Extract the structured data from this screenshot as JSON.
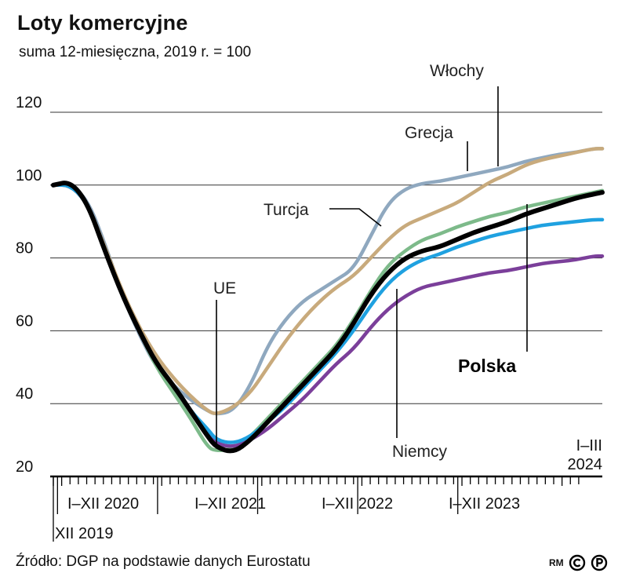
{
  "title": "Loty komercyjne",
  "subtitle": "suma 12-miesięczna, 2019 r. = 100",
  "source": "Źródło: DGP na podstawie danych Eurostatu",
  "credit": "RM",
  "chart_data": {
    "type": "line",
    "ylim": [
      20,
      120
    ],
    "yticks": [
      20,
      40,
      60,
      80,
      100,
      120
    ],
    "x_start": "2019-12",
    "x_end": "2024-03",
    "grid": true,
    "year_labels": [
      "I–XII 2020",
      "I–XII 2021",
      "I–XII 2022",
      "I–XII 2023"
    ],
    "start_label": "XII 2019",
    "end_label_line1": "I–III",
    "end_label_line2": "2024",
    "series": [
      {
        "name": "Polska",
        "color": "#000000",
        "values": [
          [
            0,
            100
          ],
          [
            2,
            101
          ],
          [
            4,
            95
          ],
          [
            6,
            82
          ],
          [
            8,
            70
          ],
          [
            10,
            60
          ],
          [
            12,
            51
          ],
          [
            14,
            45
          ],
          [
            16,
            38
          ],
          [
            18,
            31
          ],
          [
            19,
            28
          ],
          [
            21,
            26.5
          ],
          [
            23,
            30
          ],
          [
            25,
            35
          ],
          [
            27,
            40
          ],
          [
            29,
            45
          ],
          [
            31,
            50
          ],
          [
            33,
            55
          ],
          [
            35,
            62
          ],
          [
            37,
            70
          ],
          [
            39,
            76
          ],
          [
            41,
            80
          ],
          [
            43,
            82
          ],
          [
            45,
            83
          ],
          [
            47,
            85
          ],
          [
            49,
            87
          ],
          [
            51,
            88.5
          ],
          [
            53,
            90
          ],
          [
            55,
            92
          ],
          [
            57,
            93.5
          ],
          [
            59,
            95
          ],
          [
            61,
            96.5
          ],
          [
            63,
            97.5
          ],
          [
            64,
            98
          ]
        ]
      },
      {
        "name": "UE",
        "color": "#1fa1e0",
        "values": [
          [
            0,
            100
          ],
          [
            2,
            100
          ],
          [
            4,
            95
          ],
          [
            6,
            82
          ],
          [
            8,
            70
          ],
          [
            10,
            60
          ],
          [
            12,
            51
          ],
          [
            14,
            45
          ],
          [
            16,
            38
          ],
          [
            18,
            33
          ],
          [
            19,
            30
          ],
          [
            21,
            29
          ],
          [
            23,
            31
          ],
          [
            25,
            35
          ],
          [
            27,
            39
          ],
          [
            29,
            44
          ],
          [
            31,
            49
          ],
          [
            33,
            54
          ],
          [
            35,
            60
          ],
          [
            37,
            67
          ],
          [
            39,
            73
          ],
          [
            41,
            77
          ],
          [
            43,
            79.5
          ],
          [
            45,
            81
          ],
          [
            47,
            83
          ],
          [
            49,
            84.5
          ],
          [
            51,
            86
          ],
          [
            53,
            87
          ],
          [
            55,
            88
          ],
          [
            57,
            89
          ],
          [
            59,
            89.5
          ],
          [
            61,
            90
          ],
          [
            63,
            90.5
          ],
          [
            64,
            90.5
          ]
        ]
      },
      {
        "name": "",
        "color": "#7b3f9a",
        "values": [
          [
            0,
            100
          ],
          [
            2,
            100
          ],
          [
            4,
            95
          ],
          [
            6,
            82
          ],
          [
            8,
            70
          ],
          [
            10,
            60
          ],
          [
            12,
            51
          ],
          [
            14,
            45
          ],
          [
            16,
            38
          ],
          [
            18,
            32
          ],
          [
            19,
            29
          ],
          [
            21,
            28
          ],
          [
            23,
            30
          ],
          [
            25,
            33
          ],
          [
            27,
            37
          ],
          [
            29,
            41
          ],
          [
            31,
            46
          ],
          [
            33,
            51
          ],
          [
            35,
            55
          ],
          [
            37,
            61
          ],
          [
            39,
            66
          ],
          [
            41,
            69.5
          ],
          [
            43,
            72
          ],
          [
            45,
            73
          ],
          [
            47,
            74
          ],
          [
            49,
            75
          ],
          [
            51,
            76
          ],
          [
            53,
            76.5
          ],
          [
            55,
            77.5
          ],
          [
            57,
            78.5
          ],
          [
            59,
            79
          ],
          [
            61,
            79.5
          ],
          [
            63,
            80.5
          ],
          [
            64,
            80.5
          ]
        ]
      },
      {
        "name": "Niemcy",
        "color": "#7dba8a",
        "values": [
          [
            0,
            100
          ],
          [
            2,
            100
          ],
          [
            4,
            95
          ],
          [
            6,
            82
          ],
          [
            8,
            70
          ],
          [
            10,
            60
          ],
          [
            12,
            50
          ],
          [
            14,
            43
          ],
          [
            16,
            36
          ],
          [
            18,
            28
          ],
          [
            19,
            27
          ],
          [
            21,
            27.5
          ],
          [
            23,
            31
          ],
          [
            25,
            36
          ],
          [
            27,
            41
          ],
          [
            29,
            46
          ],
          [
            31,
            51
          ],
          [
            33,
            56
          ],
          [
            35,
            63
          ],
          [
            37,
            71
          ],
          [
            39,
            78
          ],
          [
            41,
            82
          ],
          [
            43,
            85
          ],
          [
            45,
            86.5
          ],
          [
            47,
            88.5
          ],
          [
            49,
            90
          ],
          [
            51,
            91.5
          ],
          [
            53,
            92.5
          ],
          [
            55,
            94
          ],
          [
            57,
            95
          ],
          [
            59,
            96
          ],
          [
            61,
            97
          ],
          [
            63,
            98
          ],
          [
            64,
            98.5
          ]
        ]
      },
      {
        "name": "Turcja",
        "color": "#c8aa7c",
        "values": [
          [
            0,
            100
          ],
          [
            2,
            100
          ],
          [
            4,
            95
          ],
          [
            6,
            83
          ],
          [
            8,
            71
          ],
          [
            10,
            61
          ],
          [
            12,
            53
          ],
          [
            14,
            47
          ],
          [
            16,
            42
          ],
          [
            18,
            38
          ],
          [
            19,
            37
          ],
          [
            21,
            39
          ],
          [
            23,
            43
          ],
          [
            25,
            50
          ],
          [
            27,
            57
          ],
          [
            29,
            63
          ],
          [
            31,
            68
          ],
          [
            33,
            72
          ],
          [
            35,
            75
          ],
          [
            37,
            80
          ],
          [
            39,
            85
          ],
          [
            41,
            89
          ],
          [
            43,
            91
          ],
          [
            45,
            93
          ],
          [
            47,
            95
          ],
          [
            49,
            98
          ],
          [
            51,
            101
          ],
          [
            53,
            103
          ],
          [
            55,
            105.5
          ],
          [
            57,
            107
          ],
          [
            59,
            108
          ],
          [
            61,
            109
          ],
          [
            63,
            110
          ],
          [
            64,
            110
          ]
        ]
      },
      {
        "name": "Grecja",
        "color": "#8fa8bf",
        "values": [
          [
            0,
            100
          ],
          [
            2,
            100
          ],
          [
            4,
            96
          ],
          [
            6,
            84
          ],
          [
            8,
            70
          ],
          [
            10,
            59
          ],
          [
            12,
            50
          ],
          [
            14,
            45
          ],
          [
            16,
            41
          ],
          [
            18,
            38
          ],
          [
            19,
            37
          ],
          [
            21,
            38
          ],
          [
            23,
            45
          ],
          [
            25,
            56
          ],
          [
            27,
            63
          ],
          [
            29,
            68
          ],
          [
            31,
            71
          ],
          [
            33,
            74
          ],
          [
            35,
            77
          ],
          [
            37,
            86
          ],
          [
            39,
            95
          ],
          [
            41,
            99
          ],
          [
            43,
            100.5
          ],
          [
            45,
            101
          ],
          [
            47,
            102
          ],
          [
            49,
            103
          ],
          [
            51,
            104
          ],
          [
            53,
            105
          ],
          [
            55,
            106.5
          ],
          [
            57,
            107.5
          ],
          [
            59,
            108.5
          ],
          [
            61,
            109
          ],
          [
            63,
            110
          ],
          [
            64,
            110
          ]
        ]
      }
    ],
    "callouts": [
      {
        "text": "Włochy"
      },
      {
        "text": "Grecja"
      },
      {
        "text": "Turcja"
      },
      {
        "text": "UE"
      },
      {
        "text": "Polska"
      },
      {
        "text": "Niemcy"
      }
    ]
  }
}
